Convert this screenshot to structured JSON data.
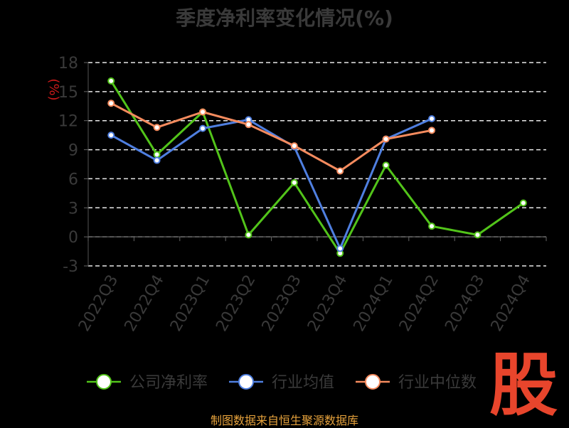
{
  "chart_data": {
    "type": "line",
    "title": "季度净利率变化情况(%)",
    "ylabel": "(%)",
    "categories": [
      "2022Q3",
      "2022Q4",
      "2023Q1",
      "2023Q2",
      "2023Q3",
      "2023Q4",
      "2024Q1",
      "2024Q2",
      "2024Q3",
      "2024Q4"
    ],
    "yticks": [
      "18",
      "15",
      "12",
      "9",
      "6",
      "3",
      "0",
      "-3"
    ],
    "ylim": [
      -3,
      18
    ],
    "grid": true,
    "legend_position": "bottom",
    "series": [
      {
        "name": "公司净利率",
        "color": "#52c41a",
        "values": [
          16.1,
          8.5,
          12.9,
          0.2,
          5.6,
          -1.7,
          7.4,
          1.1,
          0.2,
          3.5
        ]
      },
      {
        "name": "行业均值",
        "color": "#4f7fe0",
        "values": [
          10.5,
          7.9,
          11.2,
          12.1,
          9.3,
          -1.2,
          10.1,
          12.2,
          null,
          null
        ]
      },
      {
        "name": "行业中位数",
        "color": "#f58b5e",
        "values": [
          13.8,
          11.3,
          12.9,
          11.6,
          9.4,
          6.8,
          10.1,
          11.0,
          null,
          null
        ]
      }
    ]
  },
  "footer": {
    "source": "制图数据来自恒生聚源数据库"
  },
  "logo": {
    "text": "股"
  }
}
